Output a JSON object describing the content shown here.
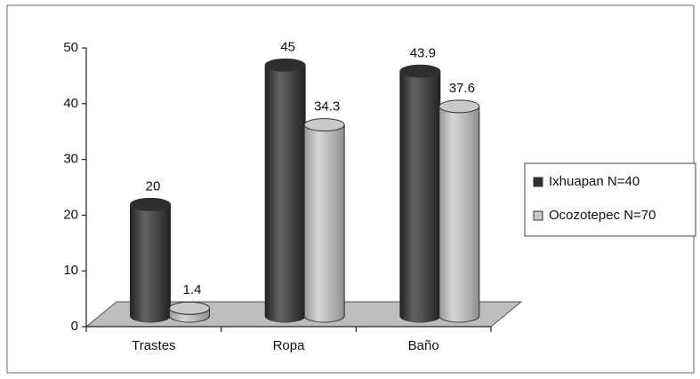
{
  "chart_data": {
    "type": "bar3d",
    "categories": [
      "Trastes",
      "Ropa",
      "Baño"
    ],
    "series": [
      {
        "name": "Ixhuapan N=40",
        "color": "#2e2e2e",
        "values": [
          20,
          45,
          43.9
        ]
      },
      {
        "name": "Ocozotepec N=70",
        "color": "#c9c9c9",
        "values": [
          1.4,
          34.3,
          37.6
        ]
      }
    ],
    "ylim": [
      0,
      50
    ],
    "yticks": [
      0,
      10,
      20,
      30,
      40,
      50
    ],
    "legend": "right"
  }
}
